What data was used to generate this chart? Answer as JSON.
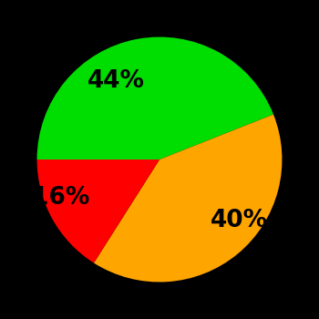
{
  "slices": [
    44,
    40,
    16
  ],
  "labels": [
    "44%",
    "40%",
    "16%"
  ],
  "colors": [
    "#00dd00",
    "#ffa500",
    "#ff0000"
  ],
  "background_color": "#000000",
  "startangle": 180,
  "figsize": [
    3.5,
    3.5
  ],
  "dpi": 100,
  "text_fontsize": 19,
  "text_fontweight": "bold",
  "labeldistance": 0.65
}
